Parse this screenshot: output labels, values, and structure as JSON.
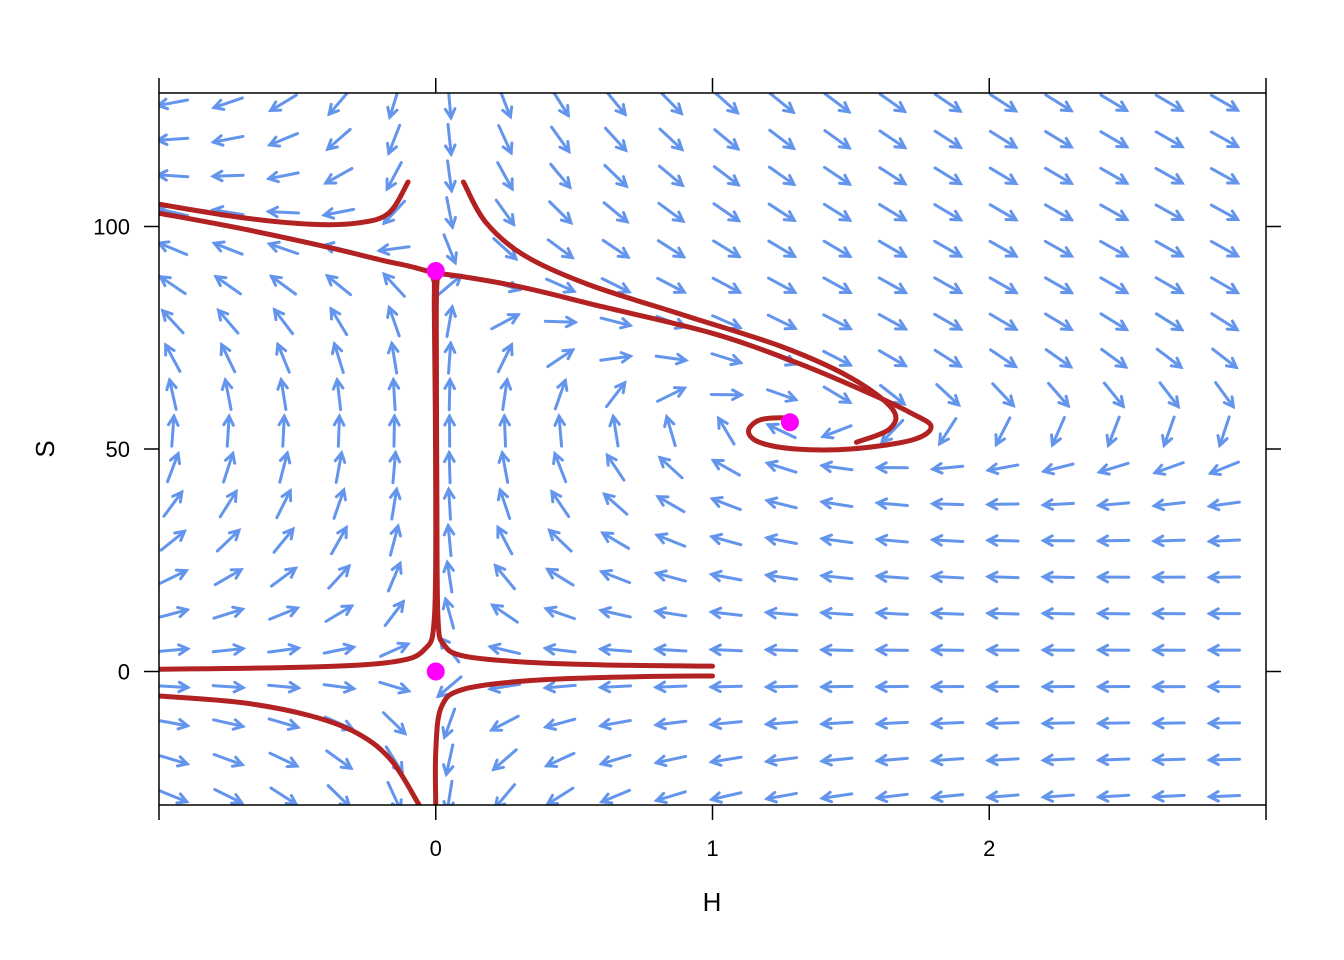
{
  "chart_data": {
    "type": "vector-field",
    "xlabel": "H",
    "ylabel": "S",
    "xlim": [
      -1,
      3
    ],
    "ylim": [
      -30,
      130
    ],
    "xticks": [
      {
        "value": -1,
        "label": ""
      },
      {
        "value": 0,
        "label": "0"
      },
      {
        "value": 1,
        "label": "1"
      },
      {
        "value": 2,
        "label": "2"
      },
      {
        "value": 3,
        "label": ""
      }
    ],
    "yticks": [
      {
        "value": 0,
        "label": "0"
      },
      {
        "value": 50,
        "label": "50"
      },
      {
        "value": 100,
        "label": "100"
      }
    ],
    "grid": false,
    "colors": {
      "arrows": "#6495ED",
      "trajectories": "#B22222",
      "equilibria": "#FF00FF"
    },
    "equilibria": [
      {
        "H": 0,
        "S": 0
      },
      {
        "H": 0,
        "S": 90
      },
      {
        "H": 1.28,
        "S": 56
      }
    ],
    "trajectories": [
      [
        [
          -1,
          105
        ],
        [
          -0.7,
          102
        ],
        [
          -0.45,
          100.5
        ],
        [
          -0.28,
          100.8
        ],
        [
          -0.17,
          103
        ],
        [
          -0.1,
          110
        ]
      ],
      [
        [
          -1,
          103
        ],
        [
          -0.7,
          99.5
        ],
        [
          -0.4,
          95.5
        ],
        [
          -0.2,
          92.5
        ],
        [
          -0.06,
          90.5
        ],
        [
          -0.01,
          88.5
        ],
        [
          -0.005,
          80
        ],
        [
          0,
          40
        ],
        [
          -0.005,
          12
        ],
        [
          -0.04,
          5
        ],
        [
          -0.15,
          2.2
        ],
        [
          -0.45,
          1
        ],
        [
          -1,
          0.5
        ]
      ],
      [
        [
          0.01,
          88.5
        ],
        [
          0.03,
          89.3
        ],
        [
          0.3,
          86.5
        ],
        [
          0.6,
          82
        ],
        [
          1,
          76
        ],
        [
          1.3,
          69.5
        ],
        [
          1.55,
          63
        ],
        [
          1.72,
          58
        ],
        [
          1.79,
          55
        ],
        [
          1.72,
          52
        ],
        [
          1.5,
          50
        ],
        [
          1.3,
          50
        ],
        [
          1.17,
          51.5
        ],
        [
          1.13,
          54
        ],
        [
          1.17,
          56.5
        ],
        [
          1.26,
          57
        ],
        [
          1.28,
          56
        ]
      ],
      [
        [
          0.1,
          110
        ],
        [
          0.18,
          101
        ],
        [
          0.32,
          93.5
        ],
        [
          0.55,
          87
        ],
        [
          0.9,
          80
        ],
        [
          1.25,
          73
        ],
        [
          1.5,
          66
        ],
        [
          1.65,
          59
        ],
        [
          1.64,
          54.5
        ],
        [
          1.52,
          51.5
        ]
      ],
      [
        [
          1,
          1.2
        ],
        [
          0.6,
          1.5
        ],
        [
          0.3,
          2.2
        ],
        [
          0.1,
          3.5
        ],
        [
          0.03,
          6
        ],
        [
          0.008,
          12
        ],
        [
          0.004,
          40
        ],
        [
          0.002,
          80
        ],
        [
          0.005,
          88
        ]
      ],
      [
        [
          0,
          -30
        ],
        [
          0,
          -18
        ],
        [
          0.02,
          -8
        ],
        [
          0.1,
          -4
        ],
        [
          0.35,
          -2
        ],
        [
          0.7,
          -1.2
        ],
        [
          1,
          -1
        ]
      ],
      [
        [
          -1,
          -5.5
        ],
        [
          -0.7,
          -7
        ],
        [
          -0.45,
          -10
        ],
        [
          -0.28,
          -14
        ],
        [
          -0.16,
          -20
        ],
        [
          -0.06,
          -30
        ]
      ]
    ]
  }
}
